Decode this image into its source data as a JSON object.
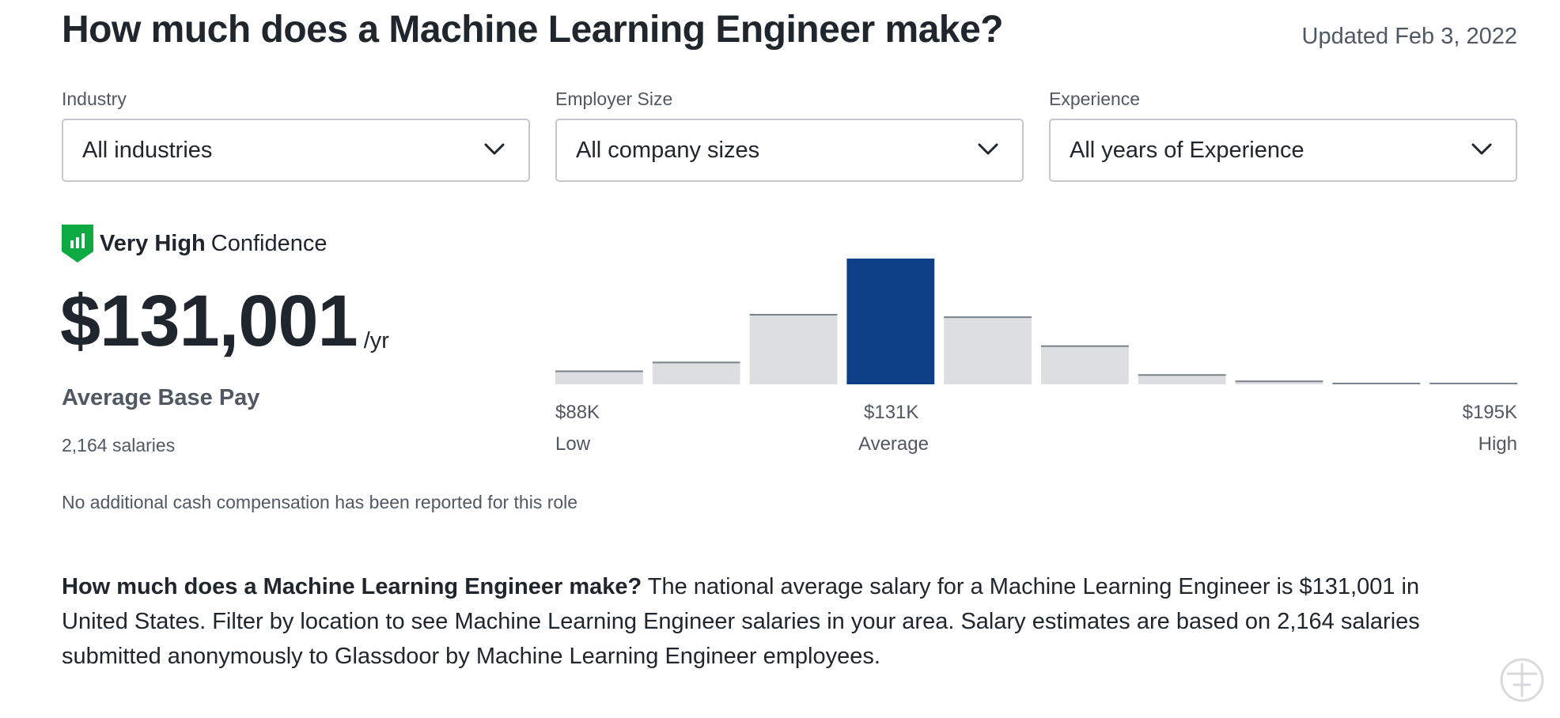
{
  "header": {
    "title": "How much does a Machine Learning Engineer make?",
    "updated": "Updated Feb 3, 2022"
  },
  "filters": [
    {
      "label": "Industry",
      "value": "All industries"
    },
    {
      "label": "Employer Size",
      "value": "All company sizes"
    },
    {
      "label": "Experience",
      "value": "All years of Experience"
    }
  ],
  "confidence": {
    "level": "Very High",
    "suffix": "Confidence",
    "icon": "shield-bar-chart-icon",
    "color": "#0caa41"
  },
  "pay": {
    "amount": "$131,001",
    "unit": "/yr",
    "label": "Average Base Pay",
    "count": "2,164 salaries",
    "additional": "No additional cash compensation has been reported for this role"
  },
  "histogram": {
    "highlight_color": "#0d3f87",
    "bar_color": "#dcdee2",
    "highlight_index": 3,
    "relative_counts": [
      0.11,
      0.18,
      0.56,
      1.0,
      0.54,
      0.31,
      0.08,
      0.03,
      0.01,
      0.01
    ],
    "low_value": "$88K",
    "low_label": "Low",
    "avg_value": "$131K",
    "avg_label": "Average",
    "high_value": "$195K",
    "high_label": "High"
  },
  "description": {
    "lead": "How much does a Machine Learning Engineer make?",
    "body": "The national average salary for a Machine Learning Engineer is $131,001 in United States. Filter by location to see Machine Learning Engineer salaries in your area. Salary estimates are based on 2,164 salaries submitted anonymously to Glassdoor by Machine Learning Engineer employees."
  }
}
